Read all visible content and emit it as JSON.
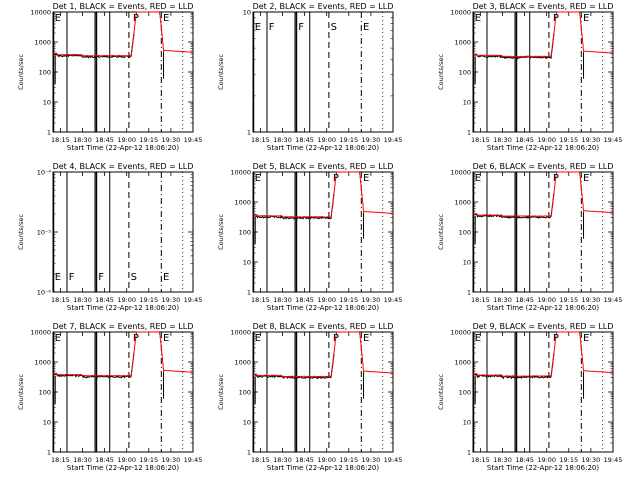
{
  "chart_data": {
    "type": "line",
    "x_tick_labels": [
      "18:15",
      "18:30",
      "18:45",
      "19:00",
      "19:15",
      "19:30",
      "19:45"
    ],
    "x_tick_minutes": [
      0,
      15,
      30,
      45,
      60,
      75,
      90
    ],
    "xlabel": "Start Time (22-Apr-12 18:06:20)",
    "ylabel": "Counts/sec",
    "legend": "BLACK = Events, RED = LLD",
    "series_colors": {
      "events": "#000000",
      "lld": "#ff0000"
    },
    "panels": [
      {
        "title": "Det 1, BLACK = Events, RED = LLD",
        "ylim": [
          1,
          10000
        ],
        "y_tick_labels": [
          "1",
          "10",
          "100",
          "1000",
          "10000"
        ],
        "has_data": true,
        "level": 350,
        "peak": 10000,
        "flare_start": 53,
        "flare_end": 72,
        "x_tick_labels": [
          "18:15",
          "18:30",
          "18:45",
          "19:00",
          "19:15",
          "19:30",
          "19:45"
        ],
        "xlabel": "Start Time (22-Apr-12 18:06:20)",
        "ylabel": "Counts/sec"
      },
      {
        "title": "Det 2, BLACK = Events, RED = LLD",
        "ylim": [
          1,
          10
        ],
        "y_tick_labels": [
          "1",
          "10"
        ],
        "has_data": false,
        "x_tick_labels": [
          "18:15",
          "18:30",
          "18:45",
          "19:00",
          "19:15",
          "19:30",
          "19:45"
        ],
        "xlabel": "Start Time (22-Apr-12 18:06:20)",
        "ylabel": "Counts/sec"
      },
      {
        "title": "Det 3, BLACK = Events, RED = LLD",
        "ylim": [
          1,
          10000
        ],
        "y_tick_labels": [
          "1",
          "10",
          "100",
          "1000",
          "10000"
        ],
        "has_data": true,
        "level": 330,
        "peak": 10000,
        "flare_start": 53,
        "flare_end": 72,
        "x_tick_labels": [
          "18:15",
          "18:30",
          "18:45",
          "19:00",
          "19:15",
          "19:30",
          "19:45"
        ],
        "xlabel": "Start Time (22-Apr-12 18:06:20)",
        "ylabel": "Counts/sec"
      },
      {
        "title": "Det 4, BLACK = Events, RED = LLD",
        "ylim": [
          1e-06,
          0.0001
        ],
        "y_tick_labels": [
          "10⁻⁶",
          "10⁻⁵",
          "10⁻⁴"
        ],
        "has_data": false,
        "x_tick_labels": [
          "18:15",
          "18:30",
          "18:45",
          "19:00",
          "19:15",
          "19:30",
          "19:45"
        ],
        "xlabel": "Start Time (22-Apr-12 18:06:20)",
        "ylabel": "Counts/sec"
      },
      {
        "title": "Det 5, BLACK = Events, RED = LLD",
        "ylim": [
          1,
          10000
        ],
        "y_tick_labels": [
          "1",
          "10",
          "100",
          "1000",
          "10000"
        ],
        "has_data": true,
        "level": 320,
        "peak": 10000,
        "flare_start": 53,
        "flare_end": 72,
        "x_tick_labels": [
          "18:15",
          "18:30",
          "18:45",
          "19:00",
          "19:15",
          "19:30",
          "19:45"
        ],
        "xlabel": "Start Time (22-Apr-12 18:06:20)",
        "ylabel": "Counts/sec"
      },
      {
        "title": "Det 6, BLACK = Events, RED = LLD",
        "ylim": [
          1,
          10000
        ],
        "y_tick_labels": [
          "1",
          "10",
          "100",
          "1000",
          "10000"
        ],
        "has_data": true,
        "level": 340,
        "peak": 10000,
        "flare_start": 53,
        "flare_end": 72,
        "x_tick_labels": [
          "18:15",
          "18:30",
          "18:45",
          "19:00",
          "19:15",
          "19:30",
          "19:45"
        ],
        "xlabel": "Start Time (22-Apr-12 18:06:20)",
        "ylabel": "Counts/sec"
      },
      {
        "title": "Det 7, BLACK = Events, RED = LLD",
        "ylim": [
          1,
          10000
        ],
        "y_tick_labels": [
          "1",
          "10",
          "100",
          "1000",
          "10000"
        ],
        "has_data": true,
        "level": 350,
        "peak": 10000,
        "flare_start": 53,
        "flare_end": 72,
        "x_tick_labels": [
          "18:15",
          "18:30",
          "18:45",
          "19:00",
          "19:15",
          "19:30",
          "19:45"
        ],
        "xlabel": "Start Time (22-Apr-12 18:06:20)",
        "ylabel": "Counts/sec"
      },
      {
        "title": "Det 8, BLACK = Events, RED = LLD",
        "ylim": [
          1,
          10000
        ],
        "y_tick_labels": [
          "1",
          "10",
          "100",
          "1000",
          "10000"
        ],
        "has_data": true,
        "level": 330,
        "peak": 10000,
        "flare_start": 53,
        "flare_end": 72,
        "x_tick_labels": [
          "18:15",
          "18:30",
          "18:45",
          "19:00",
          "19:15",
          "19:30",
          "19:45"
        ],
        "xlabel": "Start Time (22-Apr-12 18:06:20)",
        "ylabel": "Counts/sec"
      },
      {
        "title": "Det 9, BLACK = Events, RED = LLD",
        "ylim": [
          1,
          10000
        ],
        "y_tick_labels": [
          "1",
          "10",
          "100",
          "1000",
          "10000"
        ],
        "has_data": true,
        "level": 340,
        "peak": 10000,
        "flare_start": 53,
        "flare_end": 72,
        "x_tick_labels": [
          "18:15",
          "18:30",
          "18:45",
          "19:00",
          "19:15",
          "19:30",
          "19:45"
        ],
        "xlabel": "Start Time (22-Apr-12 18:06:20)",
        "ylabel": "Counts/sec"
      }
    ],
    "event_lines": [
      {
        "minute": 0.5,
        "style": "solid"
      },
      {
        "minute": 9.5,
        "style": "solid"
      },
      {
        "minute": 28.5,
        "style": "solid"
      },
      {
        "minute": 29.5,
        "style": "solid"
      },
      {
        "minute": 38.5,
        "style": "solid"
      },
      {
        "minute": 51.5,
        "style": "dashed"
      },
      {
        "minute": 73.5,
        "style": "dashdot"
      },
      {
        "minute": 88,
        "style": "dotted"
      }
    ],
    "labels_detector_2": [
      {
        "minute": 0.5,
        "text": "E"
      },
      {
        "minute": 10,
        "text": "F"
      },
      {
        "minute": 30,
        "text": "F"
      },
      {
        "minute": 52,
        "text": "S"
      },
      {
        "minute": 74,
        "text": "E"
      }
    ],
    "labels_detector_4": [
      {
        "minute": 0.5,
        "text": "E"
      },
      {
        "minute": 10,
        "text": "F"
      },
      {
        "minute": 30,
        "text": "F"
      },
      {
        "minute": 52,
        "text": "S"
      },
      {
        "minute": 74,
        "text": "E"
      }
    ],
    "top_markers_data_panels": [
      {
        "minute": 0.5,
        "text": "E"
      },
      {
        "minute": 53.5,
        "text": "P"
      },
      {
        "minute": 74,
        "text": "E"
      }
    ]
  }
}
